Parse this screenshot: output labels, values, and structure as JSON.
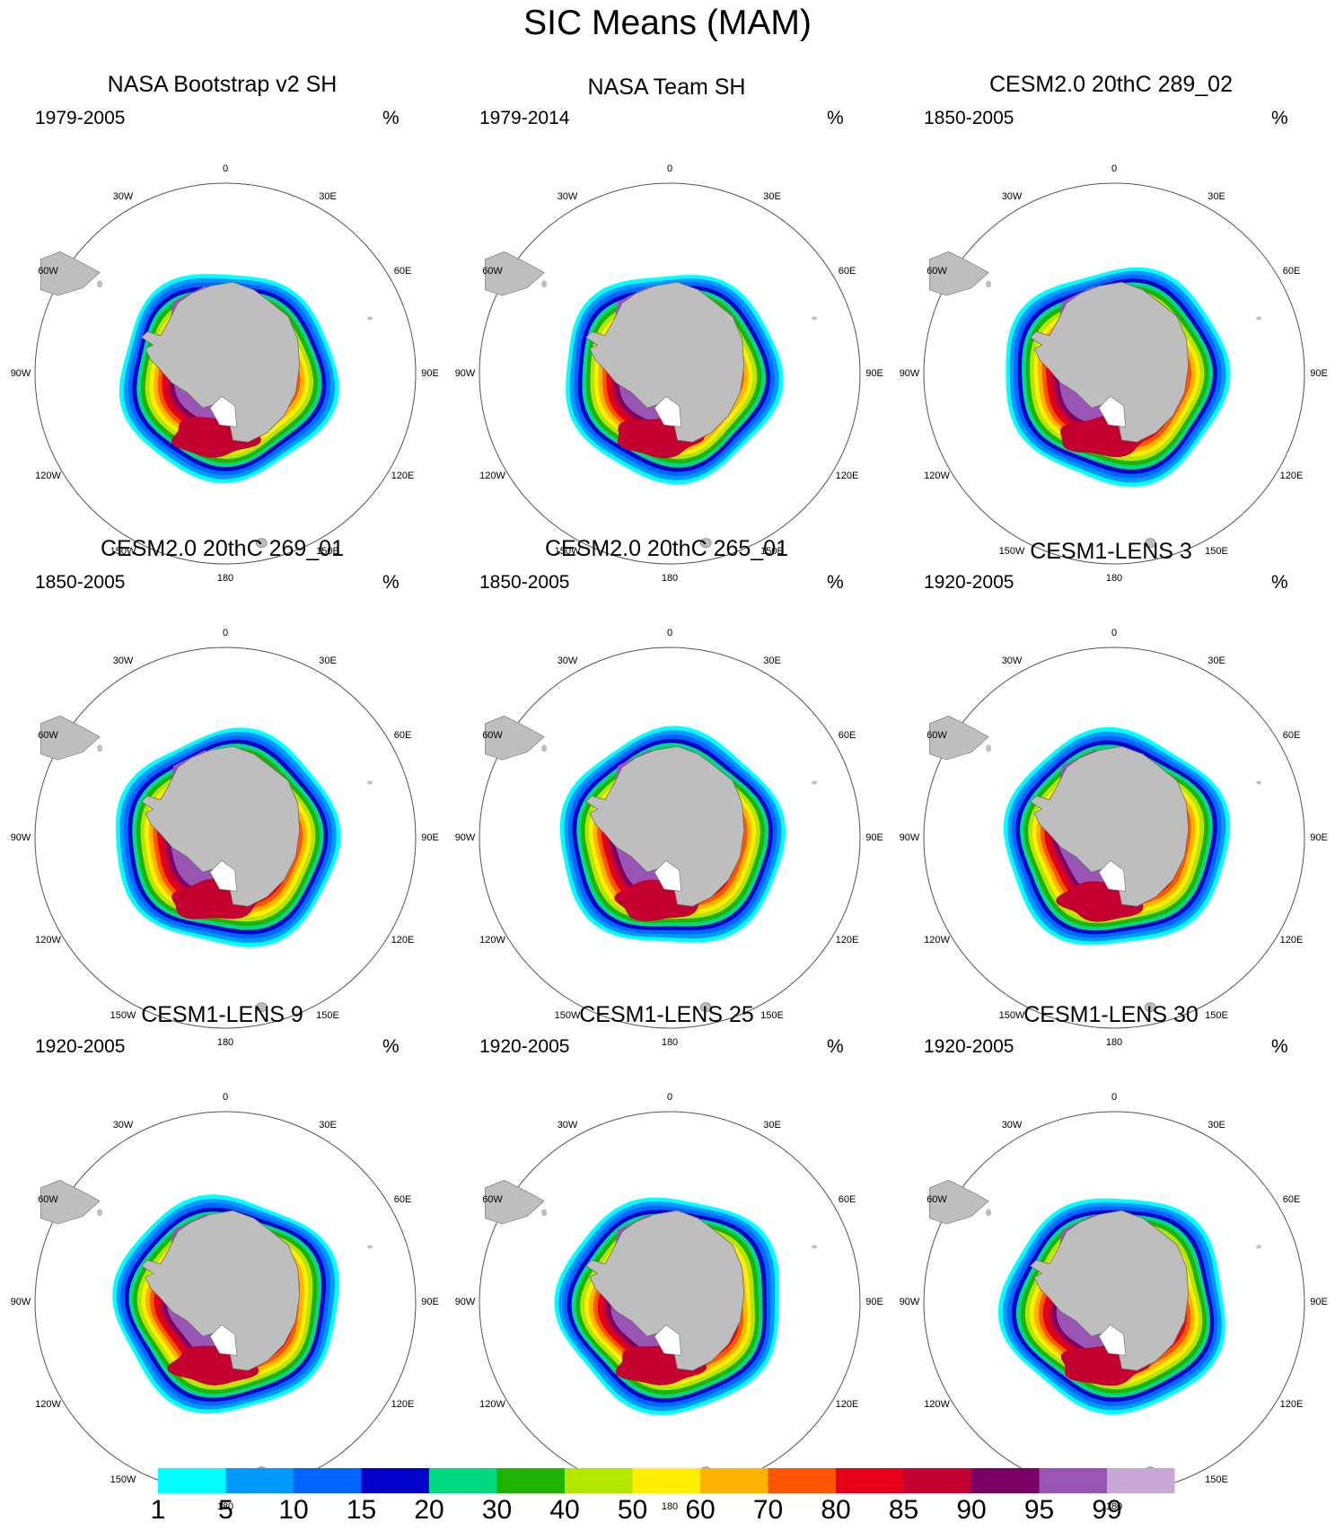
{
  "title": "SIC Means (MAM)",
  "panels": [
    {
      "title": "NASA Bootstrap v2 SH",
      "period": "1979-2005",
      "units": "%"
    },
    {
      "title": "NASA Team SH",
      "period": "1979-2014",
      "units": "%"
    },
    {
      "title": "CESM2.0 20thC 289_02",
      "period": "1850-2005",
      "units": "%"
    },
    {
      "title": "CESM2.0 20thC 269_01",
      "period": "1850-2005",
      "units": "%"
    },
    {
      "title": "CESM2.0 20thC 265_01",
      "period": "1850-2005",
      "units": "%"
    },
    {
      "title": "CESM1-LENS 3",
      "period": "1920-2005",
      "units": "%"
    },
    {
      "title": "CESM1-LENS 9",
      "period": "1920-2005",
      "units": "%"
    },
    {
      "title": "CESM1-LENS 25",
      "period": "1920-2005",
      "units": "%"
    },
    {
      "title": "CESM1-LENS 30",
      "period": "1920-2005",
      "units": "%"
    }
  ],
  "longitude_labels": [
    "0",
    "30E",
    "60E",
    "90E",
    "120E",
    "150E",
    "180",
    "150W",
    "120W",
    "90W",
    "60W",
    "30W"
  ],
  "colorbar": {
    "levels": [
      "1",
      "5",
      "10",
      "15",
      "20",
      "30",
      "40",
      "50",
      "60",
      "70",
      "80",
      "85",
      "90",
      "95",
      "99"
    ],
    "colors": [
      "#00ffff",
      "#0099ff",
      "#0066ff",
      "#0000cc",
      "#00d980",
      "#1fb300",
      "#b3e600",
      "#ffee00",
      "#ffb300",
      "#ff5500",
      "#e6001a",
      "#c40031",
      "#7a0066",
      "#9955b3",
      "#c8a6d6"
    ]
  },
  "colors": {
    "land": "#bebebe",
    "land_outline": "#6e6e6e",
    "map_border": "#555555"
  }
}
